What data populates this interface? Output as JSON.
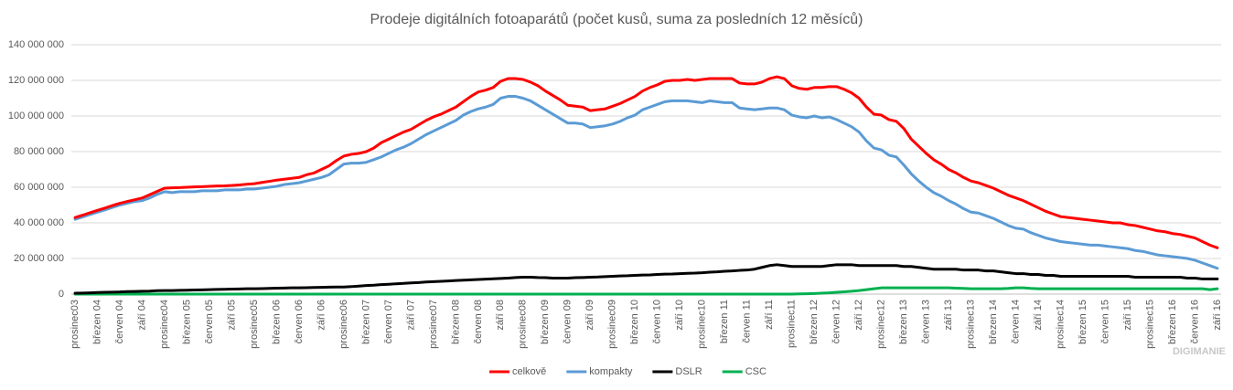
{
  "chart_data": {
    "type": "line",
    "title": "Prodeje digitálních fotoaparátů (počet kusů, suma za posledních 12 měsíců)",
    "categories": [
      "prosinec03",
      null,
      null,
      "březen 04",
      null,
      null,
      "červen 04",
      null,
      null,
      "září 04",
      null,
      null,
      "prosinec04",
      null,
      null,
      "březen 05",
      null,
      null,
      "červen 05",
      null,
      null,
      "září 05",
      null,
      null,
      "prosinec05",
      null,
      null,
      "březen 06",
      null,
      null,
      "červen 06",
      null,
      null,
      "září 06",
      null,
      null,
      "prosinec06",
      null,
      null,
      "březen 07",
      null,
      null,
      "červen 07",
      null,
      null,
      "září 07",
      null,
      null,
      "prosinec07",
      null,
      null,
      "březen 08",
      null,
      null,
      "červen 08",
      null,
      null,
      "září 08",
      null,
      null,
      "prosinec08",
      null,
      null,
      "březen 09",
      null,
      null,
      "červen 09",
      null,
      null,
      "září 09",
      null,
      null,
      "prosinec09",
      null,
      null,
      "březen 10",
      null,
      null,
      "červen 10",
      null,
      null,
      "září 10",
      null,
      null,
      "prosinec10",
      null,
      null,
      "březen 11",
      null,
      null,
      "červen 11",
      null,
      null,
      "září 11",
      null,
      null,
      "prosinec11",
      null,
      null,
      "březen 12",
      null,
      null,
      "červen 12",
      null,
      null,
      "září 12",
      null,
      null,
      "prosinec12",
      null,
      null,
      "březen 13",
      null,
      null,
      "červen 13",
      null,
      null,
      "září 13",
      null,
      null,
      "prosinec13",
      null,
      null,
      "březen 14",
      null,
      null,
      "červen 14",
      null,
      null,
      "září 14",
      null,
      null,
      "prosinec14",
      null,
      null,
      "březen 15",
      null,
      null,
      "červen 15",
      null,
      null,
      "září 15",
      null,
      null,
      "prosinec15",
      null,
      null,
      "březen 16",
      null,
      null,
      "červen 16",
      null,
      null,
      "září 16"
    ],
    "series": [
      {
        "name": "celkově",
        "color": "#ff0000",
        "values": [
          43000000,
          44300000,
          45700000,
          47000000,
          48300000,
          49700000,
          51000000,
          52000000,
          53000000,
          54000000,
          55800000,
          57700000,
          59500000,
          59700000,
          59800000,
          60000000,
          60200000,
          60300000,
          60500000,
          60700000,
          60800000,
          61000000,
          61300000,
          61700000,
          62000000,
          62700000,
          63300000,
          64000000,
          64500000,
          65000000,
          65500000,
          67000000,
          68000000,
          70000000,
          72000000,
          75000000,
          77500000,
          78500000,
          79000000,
          80000000,
          82000000,
          85000000,
          87000000,
          89000000,
          91000000,
          92500000,
          95000000,
          97500000,
          99500000,
          101000000,
          103000000,
          105000000,
          108000000,
          111000000,
          113500000,
          114500000,
          116000000,
          119500000,
          121000000,
          121000000,
          120500000,
          119000000,
          117000000,
          114000000,
          111500000,
          109000000,
          106000000,
          105500000,
          105000000,
          103000000,
          103500000,
          104000000,
          105500000,
          107000000,
          109000000,
          111000000,
          114000000,
          116000000,
          117500000,
          119500000,
          120000000,
          120000000,
          120500000,
          120000000,
          120500000,
          121000000,
          121000000,
          121000000,
          121000000,
          118500000,
          118000000,
          118000000,
          119000000,
          121000000,
          122000000,
          121000000,
          117000000,
          115500000,
          115000000,
          116000000,
          116000000,
          116500000,
          116500000,
          115000000,
          113000000,
          110000000,
          105000000,
          101000000,
          100500000,
          98000000,
          97000000,
          93000000,
          87000000,
          83000000,
          79000000,
          75500000,
          73000000,
          70000000,
          68000000,
          65500000,
          63500000,
          62500000,
          61000000,
          59500000,
          57500000,
          55500000,
          54000000,
          52500000,
          50500000,
          48500000,
          46500000,
          45000000,
          43500000,
          43000000,
          42500000,
          42000000,
          41500000,
          41000000,
          40500000,
          40000000,
          40000000,
          39000000,
          38500000,
          37500000,
          36500000,
          35500000,
          35000000,
          34000000,
          33500000,
          32500000,
          31500000,
          29500000,
          27500000,
          26000000
        ]
      },
      {
        "name": "kompakty",
        "color": "#5b9bd5",
        "values": [
          42000000,
          43300000,
          44700000,
          46000000,
          47300000,
          48700000,
          50000000,
          51000000,
          52000000,
          52500000,
          54000000,
          56000000,
          57500000,
          57000000,
          57500000,
          57500000,
          57500000,
          58000000,
          58000000,
          58000000,
          58500000,
          58500000,
          58500000,
          59000000,
          59000000,
          59500000,
          60000000,
          60500000,
          61500000,
          62000000,
          62500000,
          63500000,
          64500000,
          65500000,
          67000000,
          70000000,
          73000000,
          73500000,
          73500000,
          74000000,
          75500000,
          77000000,
          79000000,
          81000000,
          82500000,
          84500000,
          87000000,
          89500000,
          91500000,
          93500000,
          95500000,
          97500000,
          100500000,
          102500000,
          104000000,
          105000000,
          106500000,
          110000000,
          111000000,
          111000000,
          110000000,
          108500000,
          106000000,
          103500000,
          101000000,
          98500000,
          96000000,
          96000000,
          95500000,
          93500000,
          94000000,
          94500000,
          95500000,
          97000000,
          99000000,
          100500000,
          103500000,
          105000000,
          106500000,
          108000000,
          108500000,
          108500000,
          108500000,
          108000000,
          107500000,
          108500000,
          108000000,
          107500000,
          107500000,
          104500000,
          104000000,
          103500000,
          104000000,
          104500000,
          104500000,
          103500000,
          100500000,
          99500000,
          99000000,
          100000000,
          99000000,
          99500000,
          98000000,
          96000000,
          94000000,
          91000000,
          86000000,
          82000000,
          81000000,
          78000000,
          77000000,
          72500000,
          67500000,
          63500000,
          60000000,
          57000000,
          55000000,
          52500000,
          50500000,
          48000000,
          46000000,
          45500000,
          44000000,
          42500000,
          40500000,
          38500000,
          37000000,
          36500000,
          34500000,
          33000000,
          31500000,
          30500000,
          29500000,
          29000000,
          28500000,
          28000000,
          27500000,
          27500000,
          27000000,
          26500000,
          26000000,
          25500000,
          24500000,
          24000000,
          23000000,
          22000000,
          21500000,
          21000000,
          20500000,
          20000000,
          19000000,
          17500000,
          16000000,
          14500000
        ]
      },
      {
        "name": "DSLR",
        "color": "#000000",
        "values": [
          500000,
          600000,
          700000,
          900000,
          1000000,
          1100000,
          1200000,
          1400000,
          1500000,
          1600000,
          1700000,
          1900000,
          2000000,
          2000000,
          2100000,
          2200000,
          2300000,
          2400000,
          2500000,
          2600000,
          2700000,
          2800000,
          2900000,
          3000000,
          3000000,
          3100000,
          3200000,
          3300000,
          3400000,
          3500000,
          3500000,
          3600000,
          3700000,
          3800000,
          3900000,
          4000000,
          4000000,
          4200000,
          4500000,
          4800000,
          5000000,
          5300000,
          5500000,
          5800000,
          6000000,
          6300000,
          6500000,
          6800000,
          7000000,
          7200000,
          7400000,
          7600000,
          7800000,
          8000000,
          8200000,
          8400000,
          8600000,
          8800000,
          9000000,
          9300000,
          9500000,
          9500000,
          9300000,
          9200000,
          9000000,
          9000000,
          9000000,
          9200000,
          9300000,
          9500000,
          9600000,
          9800000,
          10000000,
          10200000,
          10300000,
          10500000,
          10700000,
          10800000,
          11000000,
          11200000,
          11300000,
          11500000,
          11700000,
          11800000,
          12000000,
          12300000,
          12500000,
          12800000,
          13000000,
          13300000,
          13500000,
          14000000,
          15000000,
          16000000,
          16500000,
          16000000,
          15500000,
          15500000,
          15500000,
          15500000,
          15500000,
          16000000,
          16500000,
          16500000,
          16500000,
          16000000,
          16000000,
          16000000,
          16000000,
          16000000,
          16000000,
          15500000,
          15500000,
          15000000,
          14500000,
          14000000,
          14000000,
          14000000,
          14000000,
          13500000,
          13500000,
          13500000,
          13000000,
          13000000,
          12500000,
          12000000,
          11500000,
          11500000,
          11000000,
          11000000,
          10500000,
          10500000,
          10000000,
          10000000,
          10000000,
          10000000,
          10000000,
          10000000,
          10000000,
          10000000,
          10000000,
          10000000,
          9500000,
          9500000,
          9500000,
          9500000,
          9500000,
          9500000,
          9500000,
          9000000,
          9000000,
          8500000,
          8500000,
          8500000
        ]
      },
      {
        "name": "CSC",
        "color": "#00b050",
        "values": [
          0,
          0,
          0,
          0,
          0,
          0,
          0,
          0,
          0,
          0,
          0,
          0,
          0,
          0,
          0,
          0,
          0,
          0,
          0,
          0,
          0,
          0,
          0,
          0,
          0,
          0,
          0,
          0,
          0,
          0,
          0,
          0,
          0,
          0,
          0,
          0,
          0,
          0,
          0,
          0,
          0,
          0,
          0,
          0,
          0,
          0,
          0,
          0,
          0,
          0,
          0,
          0,
          0,
          0,
          0,
          0,
          0,
          0,
          0,
          0,
          0,
          0,
          0,
          0,
          0,
          0,
          0,
          0,
          0,
          0,
          0,
          0,
          0,
          0,
          0,
          0,
          0,
          0,
          0,
          0,
          0,
          0,
          0,
          0,
          0,
          0,
          0,
          0,
          0,
          0,
          0,
          0,
          0,
          0,
          0,
          0,
          0,
          100000,
          200000,
          300000,
          500000,
          700000,
          1000000,
          1300000,
          1600000,
          2000000,
          2500000,
          3000000,
          3500000,
          3500000,
          3500000,
          3500000,
          3500000,
          3500000,
          3500000,
          3500000,
          3500000,
          3500000,
          3300000,
          3200000,
          3000000,
          3000000,
          3000000,
          3000000,
          3000000,
          3200000,
          3500000,
          3500000,
          3200000,
          3000000,
          3000000,
          3000000,
          3000000,
          3000000,
          3000000,
          3000000,
          3000000,
          3000000,
          3000000,
          3000000,
          3000000,
          3000000,
          3000000,
          3000000,
          3000000,
          3000000,
          3000000,
          3000000,
          3000000,
          3000000,
          3000000,
          3000000,
          2500000,
          3000000
        ]
      }
    ],
    "ylim": [
      0,
      140000000
    ],
    "yticks": [
      0,
      {
        "value": 20000000,
        "label": "20 000 000"
      },
      {
        "value": 40000000,
        "label": "40 000 000"
      },
      {
        "value": 60000000,
        "label": "60 000 000"
      },
      {
        "value": 80000000,
        "label": "80 000 000"
      },
      {
        "value": 100000000,
        "label": "100 000 000"
      },
      {
        "value": 120000000,
        "label": "120 000 000"
      },
      {
        "value": 140000000,
        "label": "140 000 000"
      }
    ],
    "grid": true,
    "legend": "bottom",
    "watermark": "DIGIMANIE"
  }
}
